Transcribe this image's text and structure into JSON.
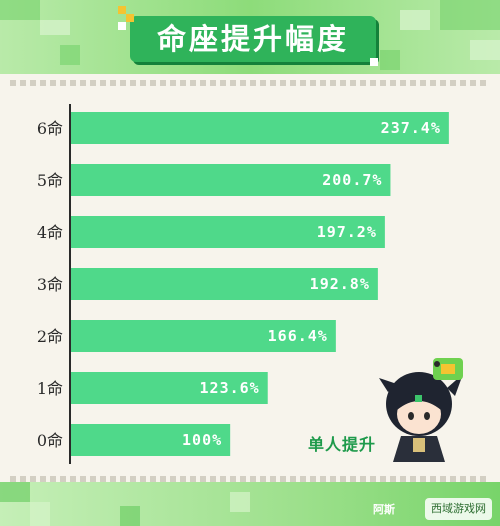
{
  "title": "命座提升幅度",
  "subtitle": "单人提升",
  "watermark": "西域游戏网",
  "watermark_left": "阿斯",
  "colors": {
    "bar": "#4fd98a",
    "title_bg": "#2fb35a",
    "accent": "#1e9a4b",
    "header": "#8ddc7a"
  },
  "chart_data": {
    "type": "bar",
    "orientation": "horizontal",
    "categories": [
      "6命",
      "5命",
      "4命",
      "3命",
      "2命",
      "1命",
      "0命"
    ],
    "values": [
      237.4,
      200.7,
      197.2,
      192.8,
      166.4,
      123.6,
      100
    ],
    "value_labels": [
      "237.4%",
      "200.7%",
      "197.2%",
      "192.8%",
      "166.4%",
      "123.6%",
      "100%"
    ],
    "xlim": [
      0,
      240
    ],
    "grid": false
  }
}
